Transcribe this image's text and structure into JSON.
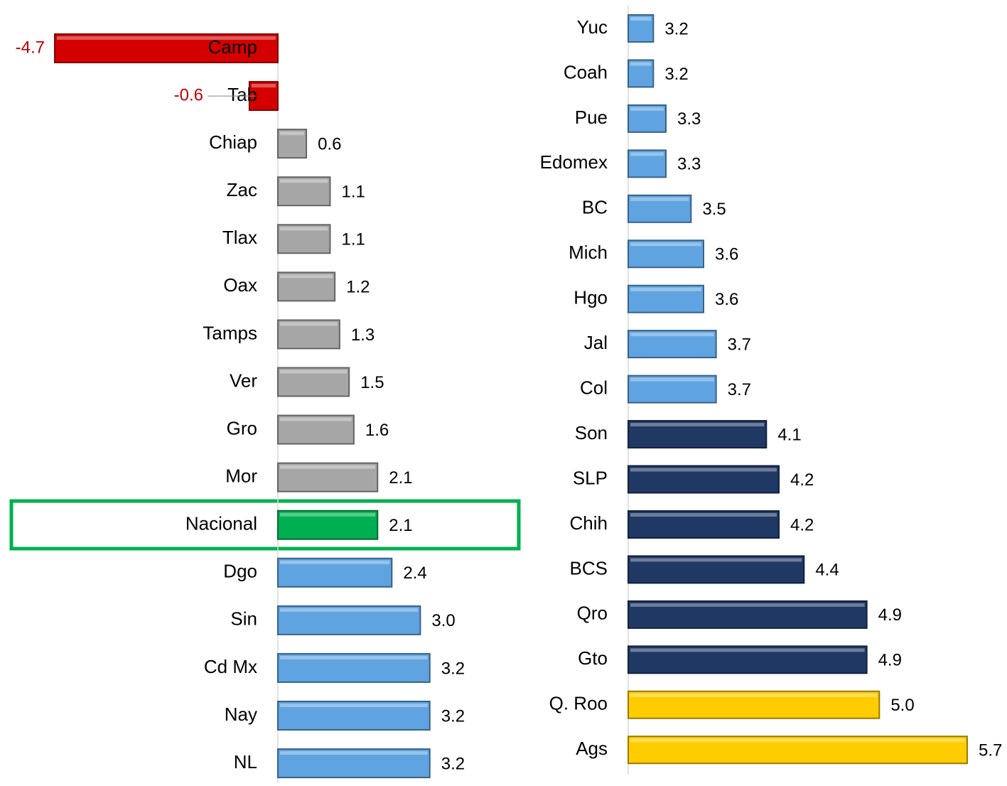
{
  "chart_data": [
    {
      "type": "bar",
      "horizontal": true,
      "categories": [
        "Camp",
        "Tab",
        "Chiap",
        "Zac",
        "Tlax",
        "Oax",
        "Tamps",
        "Ver",
        "Gro",
        "Mor",
        "Nacional",
        "Dgo",
        "Sin",
        "Cd Mx",
        "Nay",
        "NL"
      ],
      "values": [
        -4.7,
        -0.6,
        0.6,
        1.1,
        1.1,
        1.2,
        1.3,
        1.5,
        1.6,
        2.1,
        2.1,
        2.4,
        3.0,
        3.2,
        3.2,
        3.2
      ],
      "value_labels": [
        "-4.7",
        "-0.6",
        "0.6",
        "1.1",
        "1.1",
        "1.2",
        "1.3",
        "1.5",
        "1.6",
        "2.1",
        "2.1",
        "2.4",
        "3.0",
        "3.2",
        "3.2",
        "3.2"
      ],
      "colors": [
        "#d40000",
        "#d40000",
        "#a6a6a6",
        "#a6a6a6",
        "#a6a6a6",
        "#a6a6a6",
        "#a6a6a6",
        "#a6a6a6",
        "#a6a6a6",
        "#a6a6a6",
        "#00b050",
        "#5fa4e0",
        "#5fa4e0",
        "#5fa4e0",
        "#5fa4e0",
        "#5fa4e0"
      ],
      "xlim": [
        -5,
        5
      ]
    },
    {
      "type": "bar",
      "horizontal": true,
      "categories": [
        "Yuc",
        "Coah",
        "Pue",
        "Edomex",
        "BC",
        "Mich",
        "Hgo",
        "Jal",
        "Col",
        "Son",
        "SLP",
        "Chih",
        "BCS",
        "Qro",
        "Gto",
        "Q. Roo",
        "Ags"
      ],
      "values": [
        3.2,
        3.2,
        3.3,
        3.3,
        3.5,
        3.6,
        3.6,
        3.7,
        3.7,
        4.1,
        4.2,
        4.2,
        4.4,
        4.9,
        4.9,
        5.0,
        5.7
      ],
      "value_labels": [
        "3.2",
        "3.2",
        "3.3",
        "3.3",
        "3.5",
        "3.6",
        "3.6",
        "3.7",
        "3.7",
        "4.1",
        "4.2",
        "4.2",
        "4.4",
        "4.9",
        "4.9",
        "5.0",
        "5.7"
      ],
      "colors": [
        "#5fa4e0",
        "#5fa4e0",
        "#5fa4e0",
        "#5fa4e0",
        "#5fa4e0",
        "#5fa4e0",
        "#5fa4e0",
        "#5fa4e0",
        "#5fa4e0",
        "#1f3864",
        "#1f3864",
        "#1f3864",
        "#1f3864",
        "#1f3864",
        "#1f3864",
        "#ffcc00",
        "#ffcc00"
      ],
      "xlim": [
        3,
        6
      ]
    }
  ]
}
